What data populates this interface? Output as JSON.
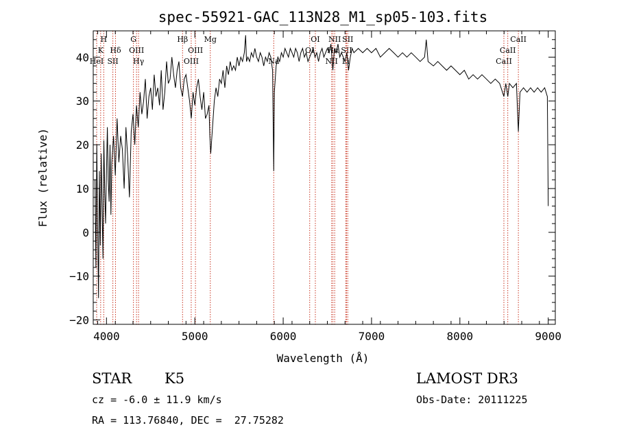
{
  "chart_data": {
    "type": "line",
    "title": "spec-55921-GAC_113N28_M1_sp05-103.fits",
    "xlabel": "Wavelength (Å)",
    "ylabel": "Flux (relative)",
    "xlim": [
      3850,
      9080
    ],
    "ylim": [
      -21,
      46
    ],
    "xticks": [
      4000,
      5000,
      6000,
      7000,
      8000,
      9000
    ],
    "yticks": [
      -20,
      -10,
      0,
      10,
      20,
      30,
      40
    ],
    "series": [
      {
        "name": "flux",
        "points": [
          [
            3870,
            12
          ],
          [
            3880,
            -8
          ],
          [
            3890,
            20
          ],
          [
            3900,
            2
          ],
          [
            3910,
            -15
          ],
          [
            3920,
            14
          ],
          [
            3930,
            -3
          ],
          [
            3940,
            18
          ],
          [
            3950,
            6
          ],
          [
            3960,
            -6
          ],
          [
            3970,
            21
          ],
          [
            3980,
            9
          ],
          [
            3990,
            2
          ],
          [
            4000,
            14
          ],
          [
            4010,
            24
          ],
          [
            4020,
            12
          ],
          [
            4030,
            7
          ],
          [
            4040,
            20
          ],
          [
            4050,
            4
          ],
          [
            4060,
            16
          ],
          [
            4080,
            22
          ],
          [
            4100,
            13
          ],
          [
            4120,
            26
          ],
          [
            4140,
            16
          ],
          [
            4160,
            22
          ],
          [
            4180,
            19
          ],
          [
            4200,
            10
          ],
          [
            4220,
            24
          ],
          [
            4240,
            17
          ],
          [
            4260,
            8
          ],
          [
            4280,
            23
          ],
          [
            4300,
            27
          ],
          [
            4320,
            20
          ],
          [
            4340,
            29
          ],
          [
            4360,
            24
          ],
          [
            4380,
            32
          ],
          [
            4400,
            27
          ],
          [
            4420,
            30
          ],
          [
            4440,
            35
          ],
          [
            4460,
            26
          ],
          [
            4480,
            31
          ],
          [
            4500,
            33
          ],
          [
            4520,
            28
          ],
          [
            4540,
            36
          ],
          [
            4560,
            31
          ],
          [
            4580,
            33
          ],
          [
            4600,
            29
          ],
          [
            4620,
            37
          ],
          [
            4640,
            28
          ],
          [
            4660,
            32
          ],
          [
            4680,
            39
          ],
          [
            4700,
            34
          ],
          [
            4720,
            35
          ],
          [
            4740,
            40
          ],
          [
            4760,
            36
          ],
          [
            4780,
            33
          ],
          [
            4800,
            37
          ],
          [
            4820,
            39
          ],
          [
            4840,
            33
          ],
          [
            4860,
            31
          ],
          [
            4880,
            35
          ],
          [
            4900,
            36
          ],
          [
            4920,
            33
          ],
          [
            4940,
            30
          ],
          [
            4960,
            26
          ],
          [
            4980,
            32
          ],
          [
            5000,
            29
          ],
          [
            5020,
            33
          ],
          [
            5040,
            35
          ],
          [
            5060,
            31
          ],
          [
            5080,
            28
          ],
          [
            5100,
            32
          ],
          [
            5120,
            26
          ],
          [
            5140,
            27
          ],
          [
            5160,
            29
          ],
          [
            5170,
            22
          ],
          [
            5180,
            18
          ],
          [
            5200,
            24
          ],
          [
            5220,
            30
          ],
          [
            5240,
            33
          ],
          [
            5260,
            31
          ],
          [
            5280,
            35
          ],
          [
            5300,
            34
          ],
          [
            5320,
            37
          ],
          [
            5340,
            33
          ],
          [
            5360,
            38
          ],
          [
            5380,
            36
          ],
          [
            5400,
            39
          ],
          [
            5420,
            37
          ],
          [
            5440,
            38
          ],
          [
            5460,
            37
          ],
          [
            5480,
            40
          ],
          [
            5500,
            38
          ],
          [
            5520,
            40
          ],
          [
            5540,
            39
          ],
          [
            5560,
            41
          ],
          [
            5575,
            45
          ],
          [
            5585,
            39
          ],
          [
            5600,
            40
          ],
          [
            5620,
            39
          ],
          [
            5640,
            41
          ],
          [
            5660,
            40
          ],
          [
            5680,
            42
          ],
          [
            5700,
            40
          ],
          [
            5720,
            39
          ],
          [
            5740,
            41
          ],
          [
            5760,
            40
          ],
          [
            5780,
            38
          ],
          [
            5800,
            40
          ],
          [
            5820,
            39
          ],
          [
            5840,
            41
          ],
          [
            5860,
            40
          ],
          [
            5880,
            37
          ],
          [
            5893,
            14
          ],
          [
            5900,
            32
          ],
          [
            5920,
            38
          ],
          [
            5940,
            40
          ],
          [
            5960,
            39
          ],
          [
            5980,
            41
          ],
          [
            6000,
            40
          ],
          [
            6020,
            42
          ],
          [
            6040,
            41
          ],
          [
            6060,
            40
          ],
          [
            6080,
            42
          ],
          [
            6100,
            41
          ],
          [
            6120,
            40
          ],
          [
            6140,
            42
          ],
          [
            6160,
            41
          ],
          [
            6180,
            39
          ],
          [
            6200,
            41
          ],
          [
            6220,
            42
          ],
          [
            6240,
            40
          ],
          [
            6260,
            41
          ],
          [
            6280,
            39
          ],
          [
            6300,
            40
          ],
          [
            6320,
            41
          ],
          [
            6340,
            42
          ],
          [
            6360,
            40
          ],
          [
            6380,
            41
          ],
          [
            6400,
            39
          ],
          [
            6420,
            41
          ],
          [
            6440,
            42
          ],
          [
            6460,
            40
          ],
          [
            6480,
            41
          ],
          [
            6500,
            42
          ],
          [
            6520,
            41
          ],
          [
            6540,
            43
          ],
          [
            6562,
            37
          ],
          [
            6580,
            42
          ],
          [
            6600,
            41
          ],
          [
            6620,
            43
          ],
          [
            6640,
            40
          ],
          [
            6660,
            41
          ],
          [
            6680,
            40
          ],
          [
            6700,
            39
          ],
          [
            6720,
            41
          ],
          [
            6740,
            37
          ],
          [
            6760,
            40
          ],
          [
            6780,
            42
          ],
          [
            6800,
            41
          ],
          [
            6850,
            42
          ],
          [
            6900,
            41
          ],
          [
            6950,
            42
          ],
          [
            7000,
            41
          ],
          [
            7050,
            42
          ],
          [
            7100,
            40
          ],
          [
            7150,
            41
          ],
          [
            7200,
            42
          ],
          [
            7250,
            41
          ],
          [
            7300,
            40
          ],
          [
            7350,
            41
          ],
          [
            7400,
            40
          ],
          [
            7450,
            41
          ],
          [
            7500,
            40
          ],
          [
            7550,
            39
          ],
          [
            7600,
            40
          ],
          [
            7620,
            44
          ],
          [
            7640,
            39
          ],
          [
            7700,
            38
          ],
          [
            7750,
            39
          ],
          [
            7800,
            38
          ],
          [
            7850,
            37
          ],
          [
            7900,
            38
          ],
          [
            7950,
            37
          ],
          [
            8000,
            36
          ],
          [
            8050,
            37
          ],
          [
            8100,
            35
          ],
          [
            8150,
            36
          ],
          [
            8200,
            35
          ],
          [
            8250,
            36
          ],
          [
            8300,
            35
          ],
          [
            8350,
            34
          ],
          [
            8400,
            35
          ],
          [
            8450,
            34
          ],
          [
            8498,
            31
          ],
          [
            8520,
            34
          ],
          [
            8542,
            31
          ],
          [
            8560,
            34
          ],
          [
            8600,
            33
          ],
          [
            8640,
            34
          ],
          [
            8662,
            23
          ],
          [
            8680,
            32
          ],
          [
            8720,
            33
          ],
          [
            8760,
            32
          ],
          [
            8800,
            33
          ],
          [
            8840,
            32
          ],
          [
            8880,
            33
          ],
          [
            8920,
            32
          ],
          [
            8960,
            33
          ],
          [
            8990,
            31
          ],
          [
            9000,
            6
          ]
        ]
      }
    ],
    "lines": [
      {
        "label": "HeI",
        "x": 3889,
        "row": 3
      },
      {
        "label": "K",
        "x": 3934,
        "row": 2
      },
      {
        "label": "H",
        "x": 3969,
        "row": 1
      },
      {
        "label": "SII",
        "x": 4072,
        "row": 3
      },
      {
        "label": "Hδ",
        "x": 4102,
        "row": 2
      },
      {
        "label": "G",
        "x": 4305,
        "row": 1
      },
      {
        "label": "OIII",
        "x": 4340,
        "row": 2
      },
      {
        "label": "Hγ",
        "x": 4363,
        "row": 3
      },
      {
        "label": "Hβ",
        "x": 4861,
        "row": 1
      },
      {
        "label": "OIII",
        "x": 4959,
        "row": 3
      },
      {
        "label": "OIII",
        "x": 5007,
        "row": 2
      },
      {
        "label": "Mg",
        "x": 5175,
        "row": 1
      },
      {
        "label": "Na",
        "x": 5893,
        "row": 3
      },
      {
        "label": "OI",
        "x": 6300,
        "row": 2
      },
      {
        "label": "OI",
        "x": 6364,
        "row": 1
      },
      {
        "label": "NII",
        "x": 6548,
        "row": 3
      },
      {
        "label": "Hα",
        "x": 6563,
        "row": 2
      },
      {
        "label": "NII",
        "x": 6583,
        "row": 1
      },
      {
        "label": "Li",
        "x": 6708,
        "row": 3
      },
      {
        "label": "SII",
        "x": 6717,
        "row": 2
      },
      {
        "label": "SII",
        "x": 6731,
        "row": 1
      },
      {
        "label": "CaII",
        "x": 8498,
        "row": 3
      },
      {
        "label": "CaII",
        "x": 8542,
        "row": 2
      },
      {
        "label": "CaII",
        "x": 8662,
        "row": 1
      }
    ]
  },
  "info": {
    "class": "STAR",
    "subclass": "K5",
    "survey": "LAMOST DR3",
    "cz": "cz = -6.0 ± 11.9 km/s",
    "obs_date": "Obs-Date: 20111225",
    "radec": "RA = 113.76840, DEC =  27.75282"
  },
  "colors": {
    "axis": "#000000",
    "spectrum": "#000000",
    "line_marker": "#c8321e"
  }
}
